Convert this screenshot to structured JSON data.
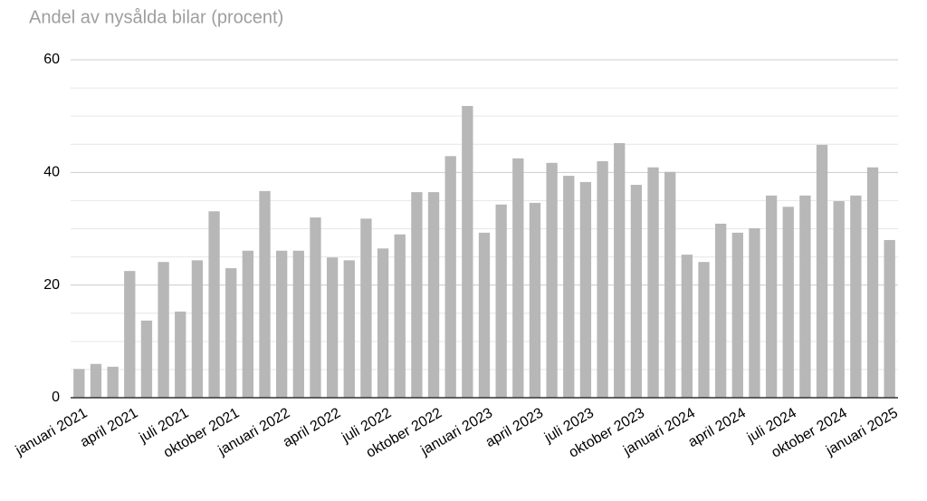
{
  "chart_data": {
    "type": "bar",
    "title": "Andel av nysålda bilar (procent)",
    "categories": [
      "januari 2021",
      null,
      null,
      "april 2021",
      null,
      null,
      "juli 2021",
      null,
      null,
      "oktober 2021",
      null,
      null,
      "januari 2022",
      null,
      null,
      "april 2022",
      null,
      null,
      "juli 2022",
      null,
      null,
      "oktober 2022",
      null,
      null,
      "januari 2023",
      null,
      null,
      "april 2023",
      null,
      null,
      "juli 2023",
      null,
      null,
      "oktober 2023",
      null,
      null,
      "januari 2024",
      null,
      null,
      "april 2024",
      null,
      null,
      "juli 2024",
      null,
      null,
      "oktober 2024",
      null,
      null,
      "januari 2025"
    ],
    "values": [
      5.1,
      6.0,
      5.5,
      22.5,
      13.7,
      24.1,
      15.3,
      24.4,
      33.1,
      23.0,
      26.1,
      36.7,
      26.1,
      26.1,
      32.0,
      24.9,
      24.4,
      31.8,
      26.5,
      29.0,
      36.5,
      36.5,
      42.9,
      51.8,
      29.3,
      34.3,
      42.5,
      34.6,
      41.7,
      39.4,
      38.3,
      42.0,
      45.2,
      37.8,
      40.9,
      40.1,
      25.4,
      24.1,
      30.9,
      29.3,
      30.1,
      35.9,
      33.9,
      35.9,
      44.9,
      34.9,
      35.9,
      40.9,
      28.0
    ],
    "color": "#b7b7b7",
    "ylim": [
      0,
      60
    ],
    "yticks": [
      0,
      20,
      40,
      60
    ],
    "yminorticks": [
      5,
      10,
      15,
      25,
      30,
      35,
      45,
      50,
      55
    ],
    "grid": true
  }
}
